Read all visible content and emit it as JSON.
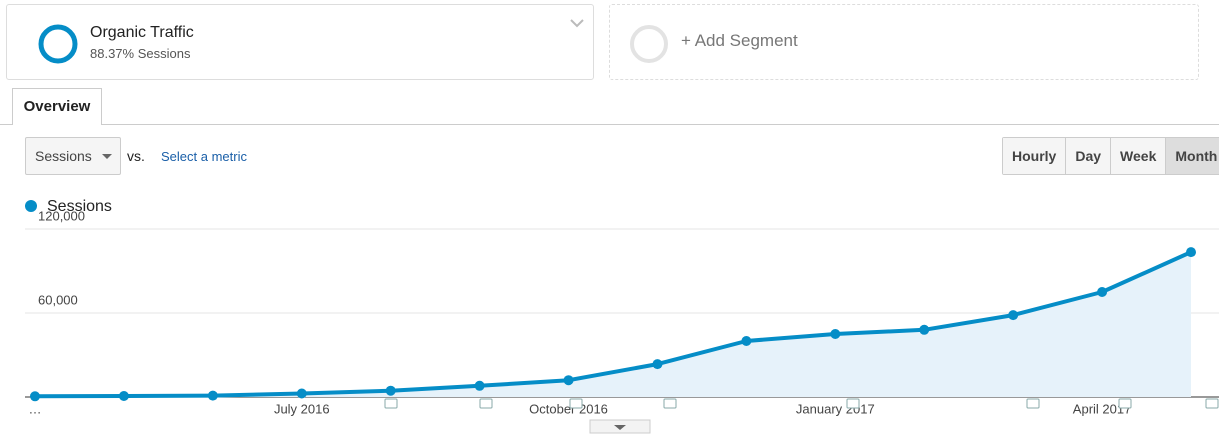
{
  "segment": {
    "name": "Organic Traffic",
    "detail": "88.37% Sessions"
  },
  "add_segment": "+ Add Segment",
  "tab": "Overview",
  "metric_select": "Sessions",
  "vs": "vs.",
  "select_metric": "Select a metric",
  "periods": [
    "Hourly",
    "Day",
    "Week",
    "Month"
  ],
  "active_period": "Month",
  "chart_data": {
    "type": "line",
    "categories": [
      "…",
      null,
      null,
      "July 2016",
      null,
      null,
      "October 2016",
      null,
      null,
      "January 2017",
      null,
      null,
      "April 2017",
      null
    ],
    "series": [
      {
        "name": "Sessions",
        "color": "#058dc7",
        "values": [
          500,
          700,
          1000,
          2500,
          4500,
          8000,
          12000,
          23500,
          40000,
          45000,
          48000,
          58500,
          75000,
          103500
        ]
      }
    ],
    "ylim": [
      0,
      120000
    ],
    "yticks": [
      {
        "value": 60000,
        "label": "60,000"
      },
      {
        "value": 120000,
        "label": "120,000"
      }
    ],
    "grid": true,
    "area": true
  }
}
